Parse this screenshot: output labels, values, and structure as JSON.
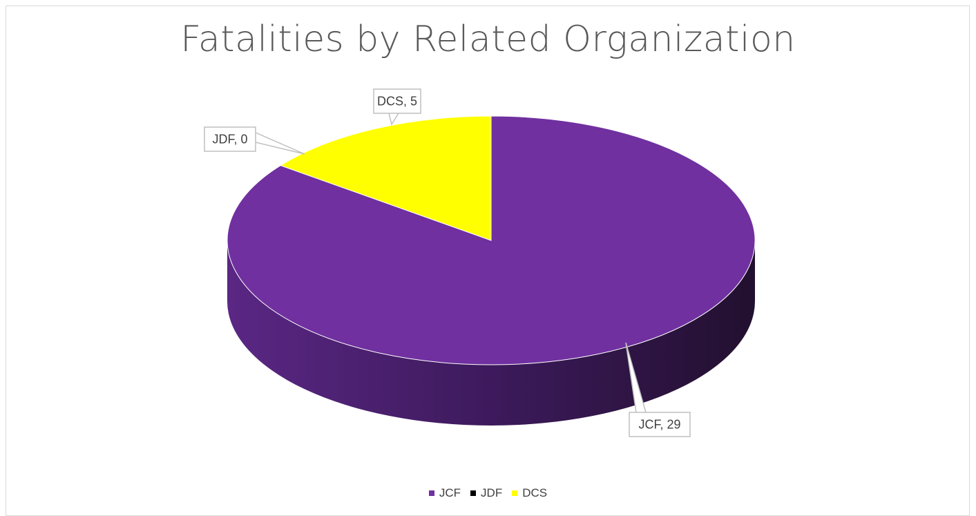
{
  "chart_data": {
    "type": "pie",
    "title": "Fatalities by Related Organization",
    "categories": [
      "JCF",
      "JDF",
      "DCS"
    ],
    "values": [
      29,
      0,
      5
    ],
    "colors": [
      "#7030a0",
      "#000000",
      "#ffff00"
    ],
    "data_labels": [
      "JCF, 29",
      "JDF, 0",
      "DCS, 5"
    ],
    "legend_position": "bottom",
    "style": "3d"
  }
}
